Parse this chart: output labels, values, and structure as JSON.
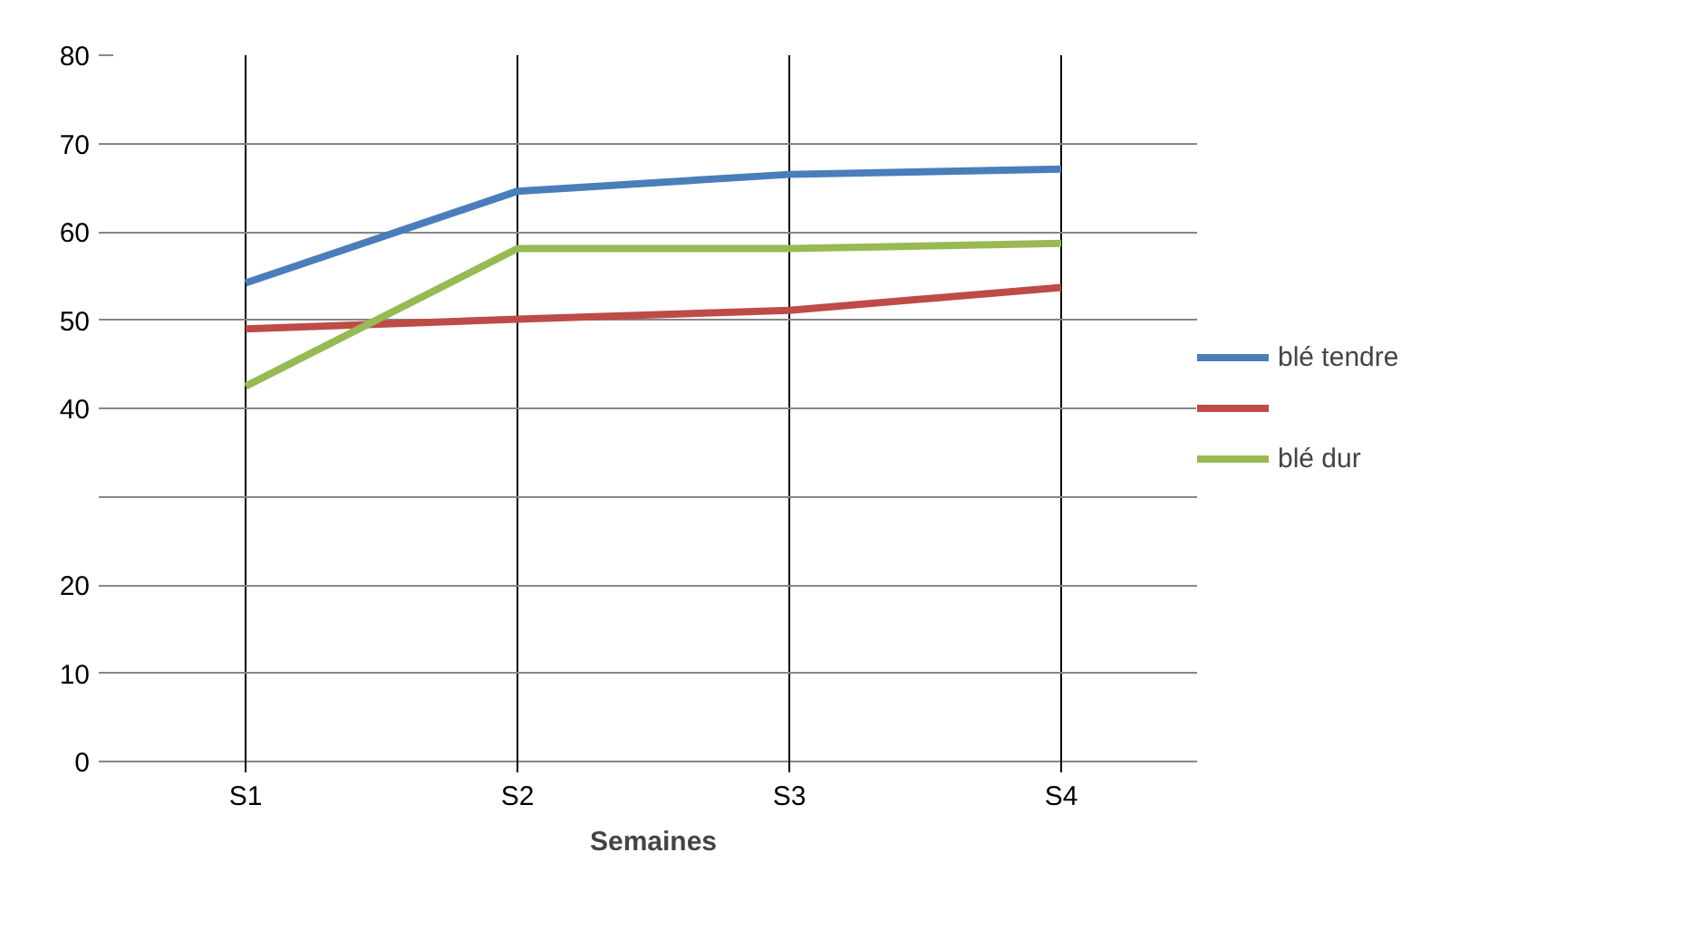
{
  "chart_data": {
    "type": "line",
    "xlabel": "Semaines",
    "categories": [
      "S1",
      "S2",
      "S3",
      "S4"
    ],
    "ylim": [
      0,
      80
    ],
    "yticks": [
      0,
      10,
      20,
      {
        "value": 30,
        "label": null
      },
      40,
      50,
      60,
      70,
      80
    ],
    "series": [
      {
        "name": "blé tendre",
        "color": "#4a7ebb",
        "values": [
          54.2,
          64.6,
          66.5,
          67.1
        ]
      },
      {
        "color": "#be4b48",
        "values": [
          49.0,
          50.1,
          51.1,
          53.7
        ]
      },
      {
        "name": "blé dur",
        "color": "#98b954",
        "values": [
          42.5,
          58.1,
          58.1,
          58.7
        ]
      }
    ],
    "grid": true,
    "legend": "right",
    "line_style": "solid",
    "marker": "none"
  }
}
